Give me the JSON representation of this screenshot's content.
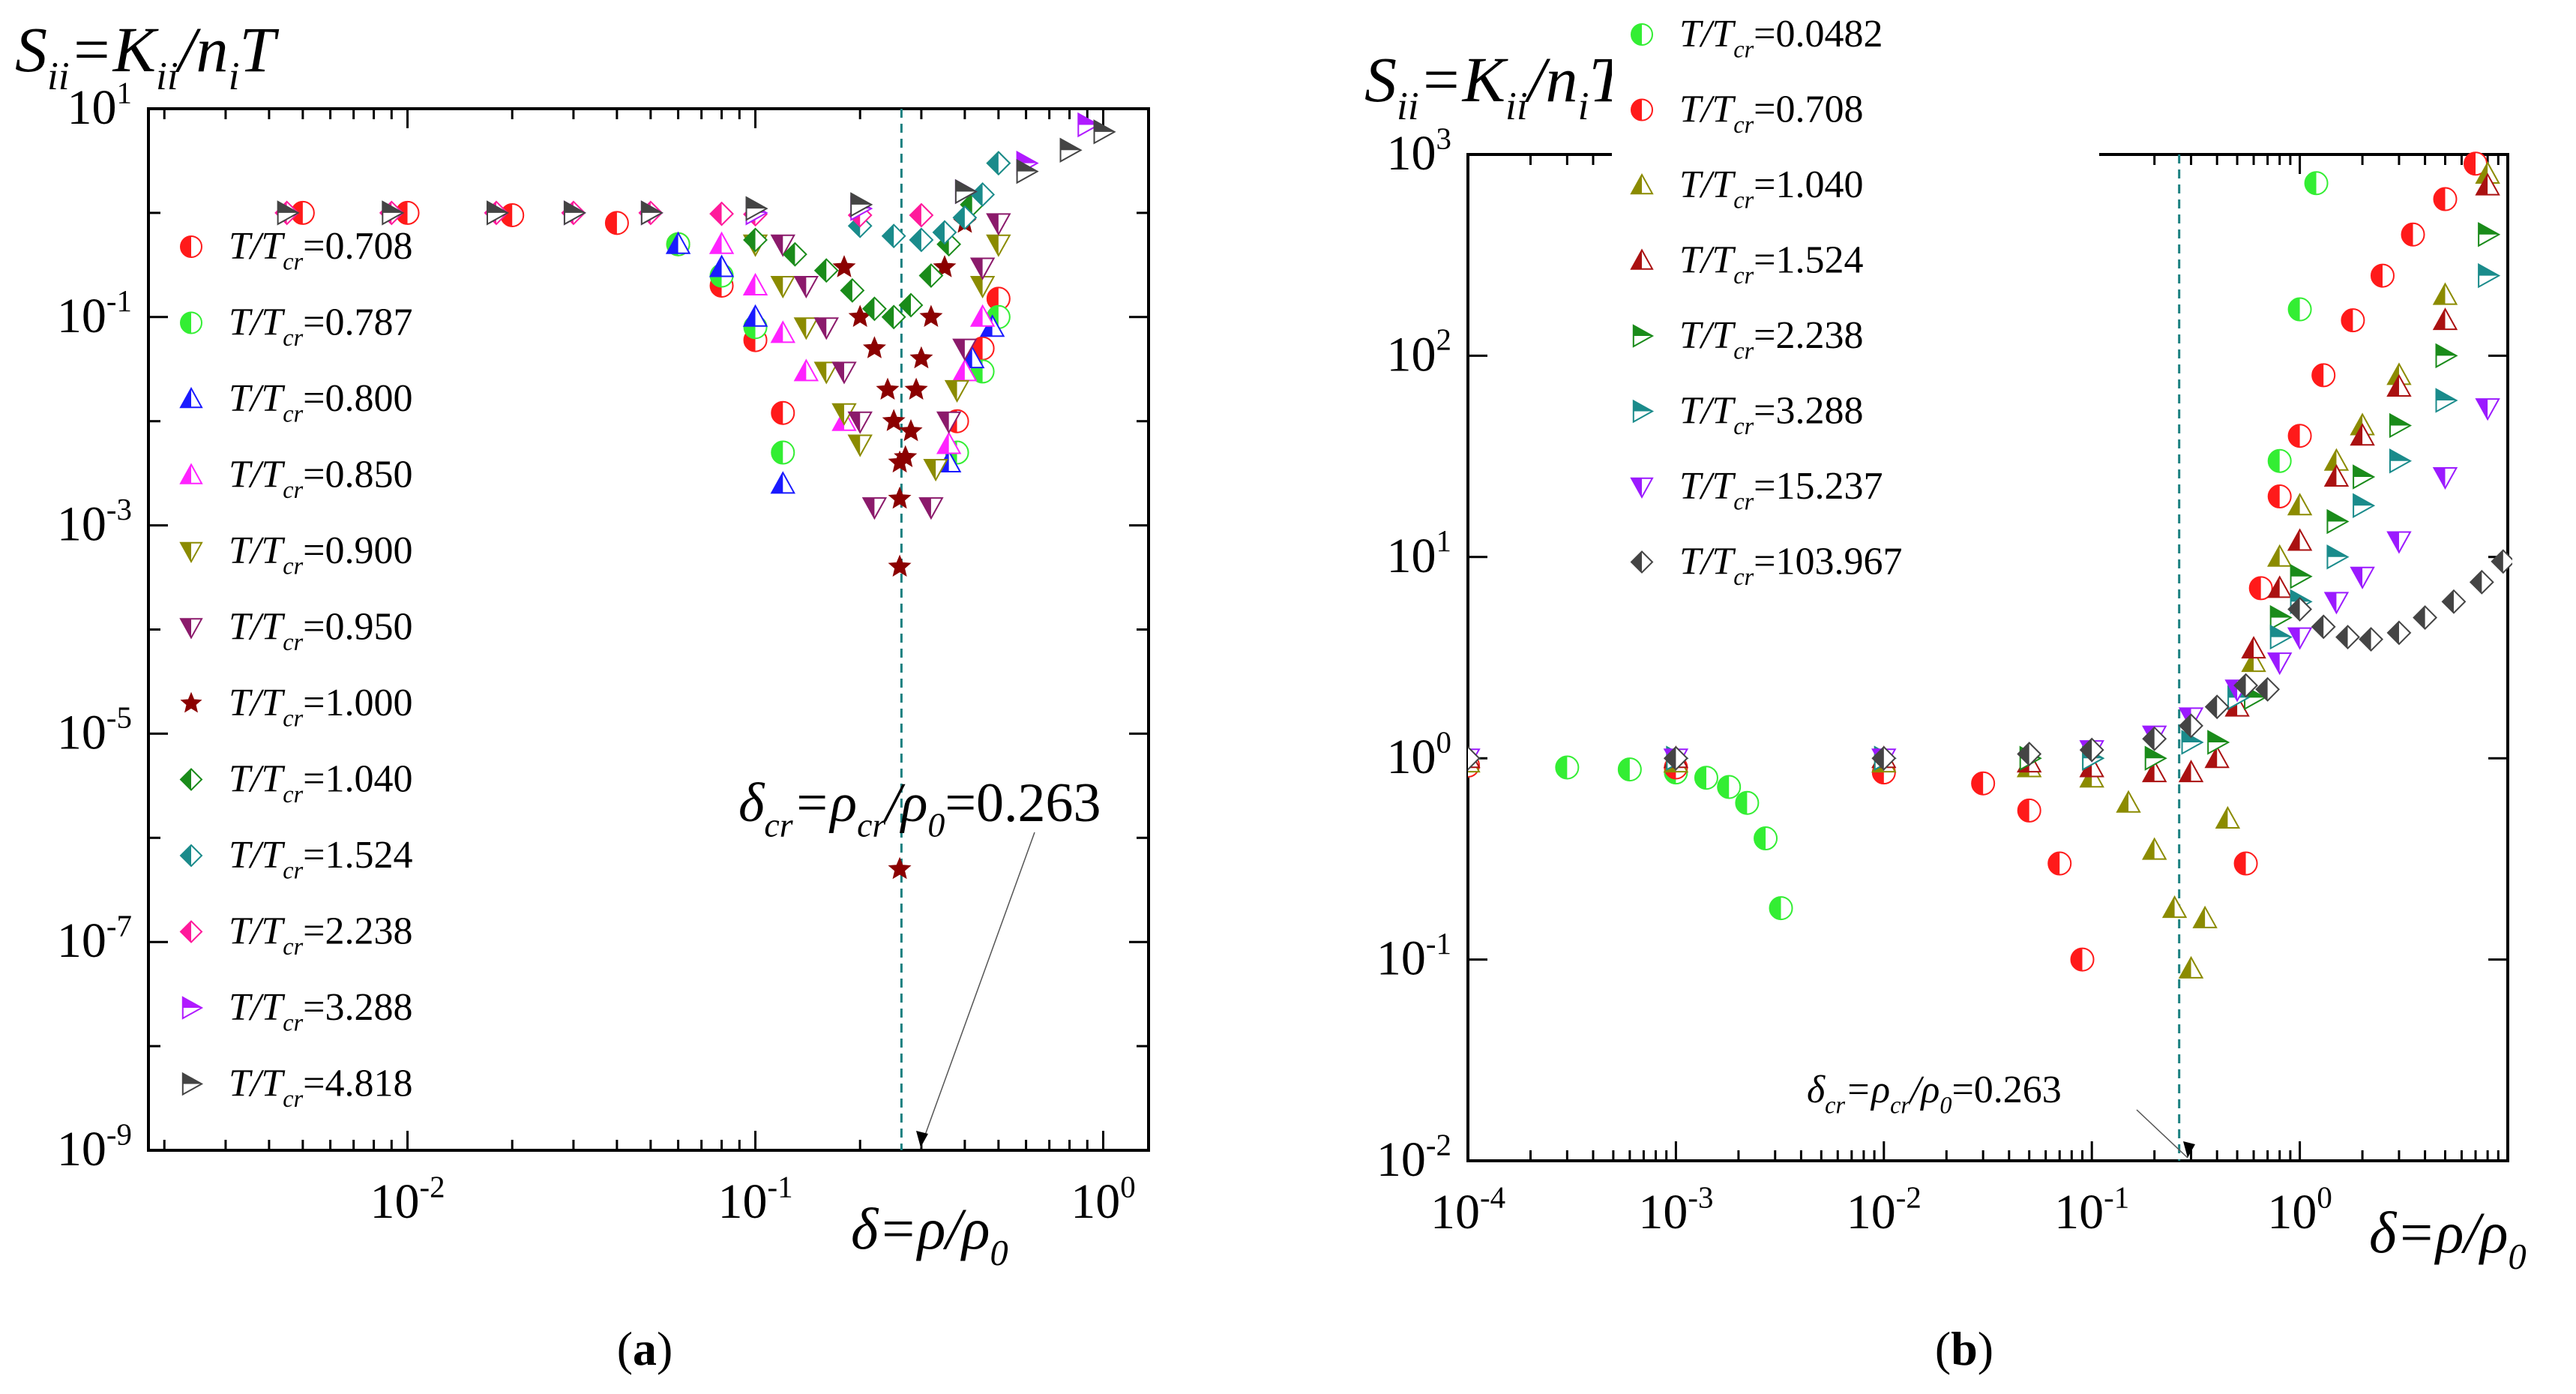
{
  "chart_data": [
    {
      "type": "scatter",
      "panel_label": "(a)",
      "ylabel": {
        "lhs": "S",
        "lhs_sub": "ii",
        "eq": "=K",
        "eq_sub": "ii",
        "mid": "/n",
        "mid_sub": "i",
        "rhs": "T"
      },
      "xlabel": {
        "main": "δ=ρ/ρ",
        "sub": "0"
      },
      "x_scale": "log",
      "y_scale": "log",
      "xlim": [
        0.0018,
        1.35
      ],
      "ylim": [
        1e-09,
        10
      ],
      "x_ticks": [
        0.01,
        0.1,
        1
      ],
      "x_tick_labels": [
        [
          "10",
          "-2"
        ],
        [
          "10",
          "-1"
        ],
        [
          "10",
          "0"
        ]
      ],
      "y_ticks": [
        1e-09,
        1e-07,
        1e-05,
        0.001,
        0.1,
        10
      ],
      "y_tick_labels": [
        [
          "10",
          "-9"
        ],
        [
          "10",
          "-7"
        ],
        [
          "10",
          "-5"
        ],
        [
          "10",
          "-3"
        ],
        [
          "10",
          "-1"
        ],
        [
          "10",
          "1"
        ]
      ],
      "critical_line_x": 0.263,
      "annotation": {
        "pre": "δ",
        "pre_sub": "cr",
        "mid": "=ρ",
        "mid_sub": "cr",
        "slash": "/ρ",
        "slash_sub": "0",
        "value": "=0.263"
      },
      "legend_prefix": {
        "t": "T/T",
        "sub": "cr"
      },
      "series": [
        {
          "name": "0.708",
          "label": "=0.708",
          "marker": "circle-half",
          "color": "#ff1a1a",
          "x": [
            0.005,
            0.01,
            0.02,
            0.04,
            0.06,
            0.08,
            0.1,
            0.12,
            0.38,
            0.45,
            0.5
          ],
          "y": [
            1,
            1,
            0.95,
            0.8,
            0.5,
            0.2,
            0.06,
            0.012,
            0.01,
            0.05,
            0.15
          ]
        },
        {
          "name": "0.787",
          "label": "=0.787",
          "marker": "circle-half",
          "color": "#33ee33",
          "x": [
            0.06,
            0.08,
            0.1,
            0.12,
            0.38,
            0.45,
            0.5
          ],
          "y": [
            0.5,
            0.25,
            0.08,
            0.005,
            0.005,
            0.03,
            0.1
          ]
        },
        {
          "name": "0.800",
          "label": "=0.800",
          "marker": "tri-up",
          "color": "#1a1aff",
          "x": [
            0.06,
            0.08,
            0.1,
            0.12,
            0.36,
            0.42,
            0.48
          ],
          "y": [
            0.5,
            0.3,
            0.1,
            0.0025,
            0.004,
            0.04,
            0.08
          ]
        },
        {
          "name": "0.850",
          "label": "=0.850",
          "marker": "tri-up",
          "color": "#ff22ff",
          "x": [
            0.08,
            0.1,
            0.12,
            0.14,
            0.18,
            0.36,
            0.4,
            0.45
          ],
          "y": [
            0.5,
            0.2,
            0.07,
            0.03,
            0.01,
            0.006,
            0.03,
            0.1
          ]
        },
        {
          "name": "0.900",
          "label": "=0.900",
          "marker": "tri-down",
          "color": "#8b8b00",
          "x": [
            0.1,
            0.12,
            0.14,
            0.16,
            0.18,
            0.2,
            0.33,
            0.38,
            0.45,
            0.5
          ],
          "y": [
            0.5,
            0.2,
            0.08,
            0.03,
            0.012,
            0.006,
            0.0035,
            0.02,
            0.2,
            0.5
          ]
        },
        {
          "name": "0.950",
          "label": "=0.950",
          "marker": "tri-down",
          "color": "#8b1a6b",
          "x": [
            0.12,
            0.14,
            0.16,
            0.18,
            0.2,
            0.22,
            0.32,
            0.36,
            0.4,
            0.45,
            0.5
          ],
          "y": [
            0.5,
            0.2,
            0.08,
            0.03,
            0.01,
            0.0015,
            0.0015,
            0.01,
            0.05,
            0.3,
            0.8
          ]
        },
        {
          "name": "1.000",
          "label": "=1.000",
          "marker": "star",
          "color": "#8b0000",
          "x": [
            0.18,
            0.2,
            0.22,
            0.24,
            0.25,
            0.26,
            0.26,
            0.26,
            0.26,
            0.27,
            0.28,
            0.29,
            0.3,
            0.32,
            0.35,
            0.4
          ],
          "y": [
            0.3,
            0.1,
            0.05,
            0.02,
            0.01,
            0.004,
            0.0018,
            0.0004,
            5e-07,
            0.0045,
            0.008,
            0.02,
            0.04,
            0.1,
            0.3,
            0.8
          ]
        },
        {
          "name": "1.040",
          "label": "=1.040",
          "marker": "diamond-half",
          "color": "#1a8b1a",
          "x": [
            0.1,
            0.13,
            0.16,
            0.19,
            0.22,
            0.25,
            0.28,
            0.32,
            0.36,
            0.42,
            0.5
          ],
          "y": [
            0.55,
            0.4,
            0.28,
            0.18,
            0.12,
            0.1,
            0.13,
            0.25,
            0.5,
            1.2,
            3
          ]
        },
        {
          "name": "1.524",
          "label": "=1.524",
          "marker": "diamond-half",
          "color": "#1a8b8b",
          "x": [
            0.2,
            0.25,
            0.3,
            0.35,
            0.4,
            0.45,
            0.5
          ],
          "y": [
            0.75,
            0.6,
            0.55,
            0.65,
            0.9,
            1.5,
            3
          ]
        },
        {
          "name": "2.238",
          "label": "=2.238",
          "marker": "diamond-half",
          "color": "#ff1a9b",
          "x": [
            0.0045,
            0.009,
            0.018,
            0.03,
            0.05,
            0.08,
            0.1,
            0.2,
            0.3
          ],
          "y": [
            1,
            1,
            1,
            1,
            1,
            0.98,
            0.97,
            0.95,
            0.95
          ]
        },
        {
          "name": "3.288",
          "label": "=3.288",
          "marker": "tri-right",
          "color": "#b01aff",
          "x": [
            0.03,
            0.05,
            0.1,
            0.2,
            0.4,
            0.6,
            0.9
          ],
          "y": [
            1,
            1,
            1,
            1.1,
            1.6,
            3,
            7
          ]
        },
        {
          "name": "4.818",
          "label": "=4.818",
          "marker": "tri-right",
          "color": "#444444",
          "x": [
            0.0045,
            0.009,
            0.018,
            0.03,
            0.05,
            0.1,
            0.2,
            0.4,
            0.6,
            0.8,
            1
          ],
          "y": [
            1,
            1,
            1,
            1,
            1,
            1.1,
            1.2,
            1.6,
            2.5,
            4,
            6
          ]
        }
      ]
    },
    {
      "type": "scatter",
      "panel_label": "(b)",
      "ylabel": {
        "lhs": "S",
        "lhs_sub": "ii",
        "eq": "=K",
        "eq_sub": "ii",
        "mid": "/n",
        "mid_sub": "i",
        "rhs": "T"
      },
      "xlabel": {
        "main": "δ=ρ/ρ",
        "sub": "0"
      },
      "x_scale": "log",
      "y_scale": "log",
      "xlim": [
        0.0001,
        10
      ],
      "ylim": [
        0.01,
        1000
      ],
      "x_ticks": [
        0.0001,
        0.001,
        0.01,
        0.1,
        1
      ],
      "x_tick_labels": [
        [
          "10",
          "-4"
        ],
        [
          "10",
          "-3"
        ],
        [
          "10",
          "-2"
        ],
        [
          "10",
          "-1"
        ],
        [
          "10",
          "0"
        ]
      ],
      "y_ticks": [
        0.01,
        0.1,
        1,
        10,
        100,
        1000
      ],
      "y_tick_labels": [
        [
          "10",
          "-2"
        ],
        [
          "10",
          "-1"
        ],
        [
          "10",
          "0"
        ],
        [
          "10",
          "1"
        ],
        [
          "10",
          "2"
        ],
        [
          "10",
          "3"
        ]
      ],
      "critical_line_x": 0.263,
      "annotation": {
        "pre": "δ",
        "pre_sub": "cr",
        "mid": "=ρ",
        "mid_sub": "cr",
        "slash": "/ρ",
        "slash_sub": "0",
        "value": "=0.263"
      },
      "legend_prefix": {
        "t": "T/T",
        "sub": "cr"
      },
      "series": [
        {
          "name": "0.0482",
          "label": "=0.0482",
          "marker": "circle-half",
          "color": "#33ee33",
          "x": [
            0.0001,
            0.0003,
            0.0006,
            0.001,
            0.0014,
            0.0018,
            0.0022,
            0.0027,
            0.0032,
            0.8,
            1,
            1.2
          ],
          "y": [
            0.92,
            0.9,
            0.88,
            0.85,
            0.8,
            0.72,
            0.6,
            0.4,
            0.18,
            30,
            170,
            720
          ]
        },
        {
          "name": "0.708",
          "label": "=0.708",
          "marker": "circle-half",
          "color": "#ff1a1a",
          "x": [
            0.0001,
            0.001,
            0.01,
            0.03,
            0.05,
            0.07,
            0.09,
            0.55,
            0.65,
            0.8,
            1,
            1.3,
            1.8,
            2.5,
            3.5,
            5,
            7
          ],
          "y": [
            0.92,
            0.9,
            0.85,
            0.75,
            0.55,
            0.3,
            0.1,
            0.3,
            7,
            20,
            40,
            80,
            150,
            250,
            400,
            600,
            900
          ]
        },
        {
          "name": "1.040",
          "label": "=1.040",
          "marker": "tri-up",
          "color": "#8b8b00",
          "x": [
            0.0001,
            0.001,
            0.01,
            0.05,
            0.1,
            0.15,
            0.2,
            0.25,
            0.3,
            0.35,
            0.45,
            0.6,
            0.8,
            1,
            1.5,
            2,
            3,
            5,
            8
          ],
          "y": [
            0.95,
            0.95,
            0.95,
            0.9,
            0.8,
            0.6,
            0.35,
            0.18,
            0.09,
            0.16,
            0.5,
            3,
            10,
            18,
            30,
            45,
            80,
            200,
            800
          ]
        },
        {
          "name": "1.524",
          "label": "=1.524",
          "marker": "tri-up",
          "color": "#aa1111",
          "x": [
            0.0001,
            0.001,
            0.01,
            0.05,
            0.1,
            0.2,
            0.3,
            0.4,
            0.5,
            0.6,
            0.8,
            1,
            1.5,
            2,
            3,
            5,
            8
          ],
          "y": [
            1,
            1,
            1,
            0.95,
            0.9,
            0.85,
            0.85,
            1,
            1.8,
            3.5,
            7,
            12,
            25,
            40,
            70,
            150,
            700
          ]
        },
        {
          "name": "2.238",
          "label": "=2.238",
          "marker": "tri-right",
          "color": "#1a8b1a",
          "x": [
            0.0001,
            0.001,
            0.01,
            0.05,
            0.1,
            0.2,
            0.4,
            0.6,
            0.8,
            1,
            1.5,
            2,
            3,
            5,
            8
          ],
          "y": [
            1,
            1,
            1,
            1,
            1,
            1,
            1.2,
            2,
            5,
            8,
            15,
            25,
            45,
            100,
            400
          ]
        },
        {
          "name": "3.288",
          "label": "=3.288",
          "marker": "tri-right",
          "color": "#1a8b8b",
          "x": [
            0.0001,
            0.001,
            0.01,
            0.1,
            0.3,
            0.5,
            0.8,
            1,
            1.5,
            2,
            3,
            5,
            8
          ],
          "y": [
            1,
            1,
            1,
            1,
            1.2,
            2,
            4,
            6,
            10,
            18,
            30,
            60,
            250
          ]
        },
        {
          "name": "15.237",
          "label": "=15.237",
          "marker": "tri-down",
          "color": "#9b1aff",
          "x": [
            0.0001,
            0.001,
            0.01,
            0.1,
            0.2,
            0.3,
            0.5,
            0.8,
            1,
            1.5,
            2,
            3,
            5,
            8
          ],
          "y": [
            1,
            1,
            1,
            1.1,
            1.3,
            1.6,
            2.2,
            3,
            4,
            6,
            8,
            12,
            25,
            55
          ]
        },
        {
          "name": "103.967",
          "label": "=103.967",
          "marker": "diamond-half",
          "color": "#444444",
          "x": [
            0.0001,
            0.001,
            0.01,
            0.05,
            0.1,
            0.2,
            0.3,
            0.4,
            0.55,
            0.7,
            1,
            1.3,
            1.7,
            2.2,
            3,
            4,
            5.5,
            7.5,
            9.5
          ],
          "y": [
            1,
            1,
            1,
            1.05,
            1.1,
            1.25,
            1.45,
            1.8,
            2.3,
            2.2,
            5.5,
            4.5,
            4,
            3.9,
            4.2,
            5,
            6,
            7.5,
            9.5
          ]
        }
      ]
    }
  ]
}
